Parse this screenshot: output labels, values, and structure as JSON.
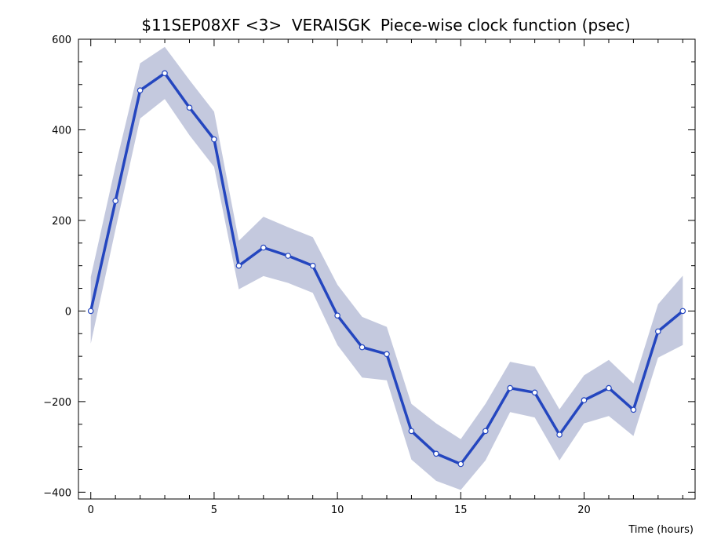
{
  "chart_data": {
    "type": "line",
    "title": "$11SEP08XF <3>  VERAISGK  Piece-wise clock function (psec)",
    "xlabel": "Time (hours)",
    "ylabel": "",
    "xlim": [
      -0.5,
      24.5
    ],
    "ylim": [
      -415,
      600
    ],
    "x_ticks": [
      0,
      5,
      10,
      15,
      20
    ],
    "y_ticks": [
      -400,
      -200,
      0,
      200,
      400,
      600
    ],
    "x_tick_labels": [
      "0",
      "5",
      "10",
      "15",
      "20"
    ],
    "y_tick_labels": [
      "−400",
      "−200",
      "0",
      "200",
      "400",
      "600"
    ],
    "grid": false,
    "legend": "none",
    "colors": {
      "line": "#2446bf",
      "band": "#c4c9de",
      "marker_fill": "#ffffff"
    },
    "series": [
      {
        "x": [
          0,
          1,
          2,
          3,
          4,
          5,
          6,
          7,
          8,
          9,
          10,
          11,
          12,
          13,
          14,
          15,
          16,
          17,
          18,
          19,
          20,
          21,
          22,
          23,
          24
        ],
        "values": [
          0,
          243,
          487,
          525,
          449,
          379,
          100,
          140,
          122,
          100,
          -10,
          -80,
          -95,
          -265,
          -315,
          -338,
          -265,
          -170,
          -180,
          -273,
          -197,
          -170,
          -218,
          -45,
          0
        ],
        "upper": [
          75,
          320,
          547,
          583,
          510,
          440,
          155,
          208,
          185,
          163,
          58,
          -13,
          -35,
          -205,
          -248,
          -283,
          -205,
          -112,
          -123,
          -217,
          -142,
          -108,
          -160,
          15,
          78
        ],
        "lower": [
          -72,
          180,
          425,
          468,
          388,
          318,
          48,
          77,
          62,
          40,
          -75,
          -147,
          -153,
          -328,
          -375,
          -395,
          -330,
          -223,
          -235,
          -330,
          -248,
          -232,
          -276,
          -103,
          -75
        ]
      }
    ]
  }
}
